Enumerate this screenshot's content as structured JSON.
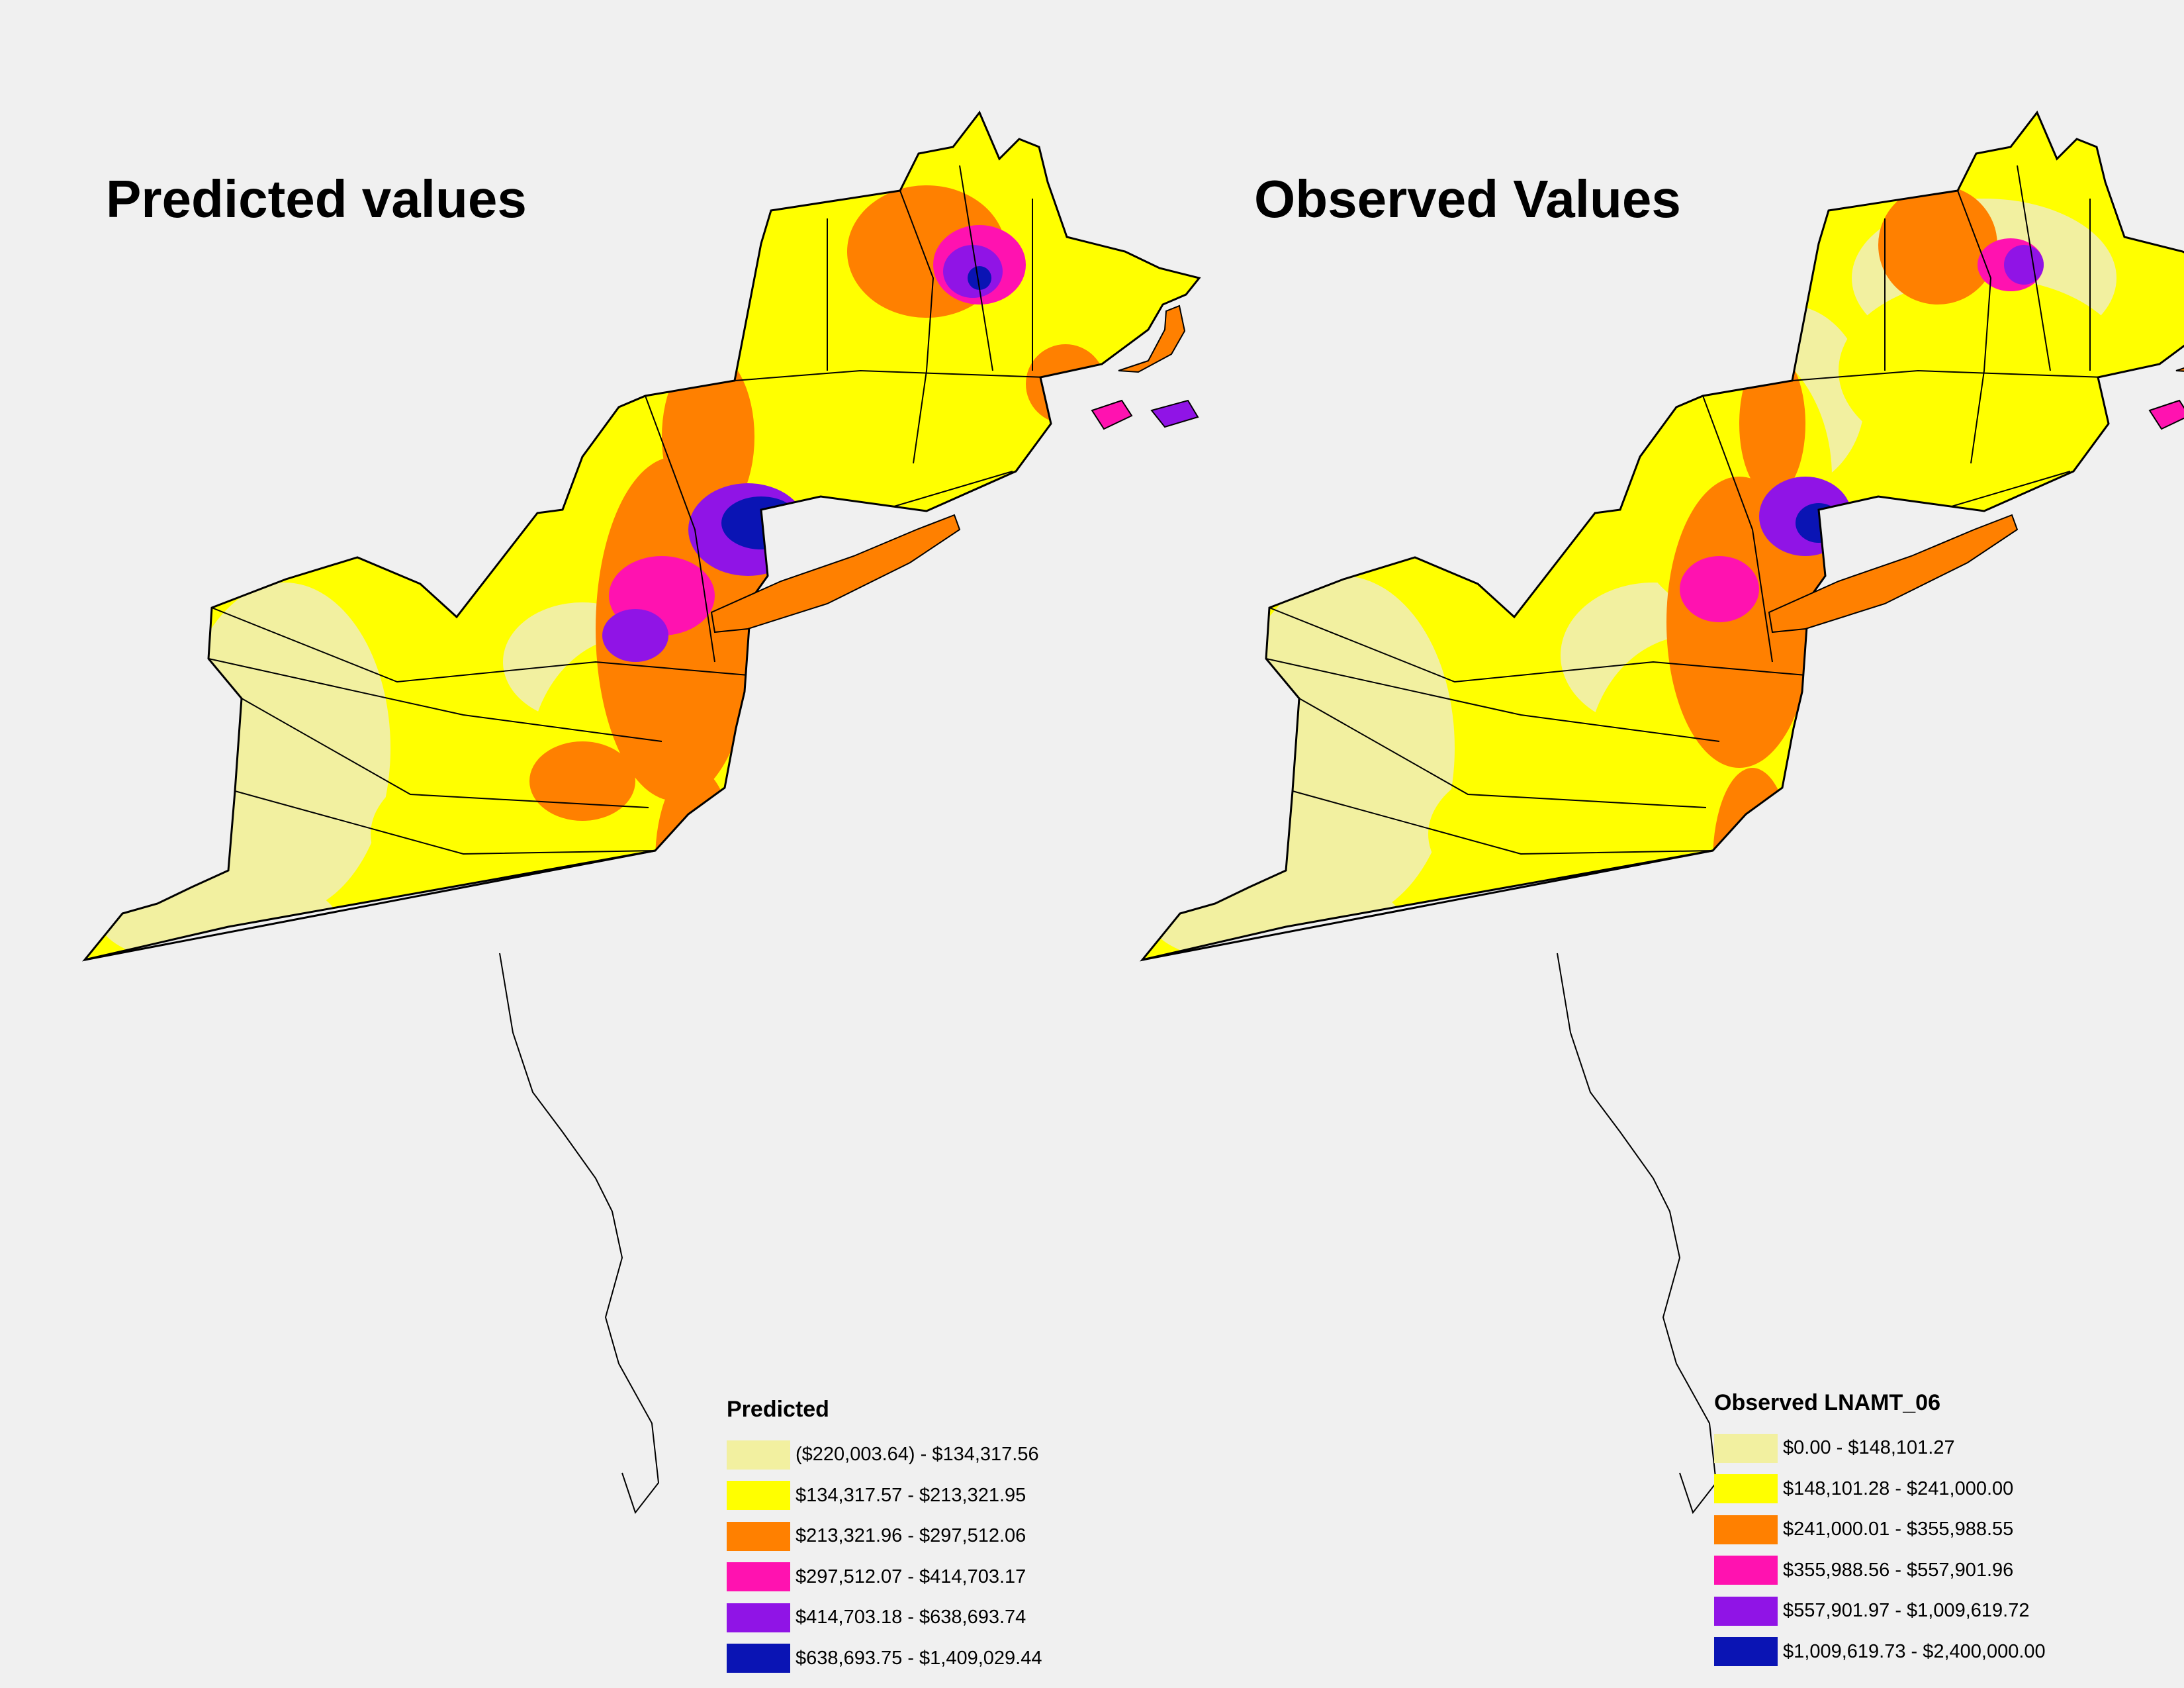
{
  "colors": {
    "class1": "#f2f0a0",
    "class2": "#ffff00",
    "class3": "#ff8000",
    "class4": "#ff12b0",
    "class5": "#9014e6",
    "class6": "#0a14b4",
    "background": "#f0f0f0",
    "border": "#000000"
  },
  "maps": [
    {
      "title": "Predicted values",
      "legend": {
        "title": "Predicted",
        "classes": [
          {
            "label": "($220,003.64) - $134,317.56",
            "color": "#f2f0a0"
          },
          {
            "label": "$134,317.57 - $213,321.95",
            "color": "#ffff00"
          },
          {
            "label": "$213,321.96 - $297,512.06",
            "color": "#ff8000"
          },
          {
            "label": "$297,512.07 - $414,703.17",
            "color": "#ff12b0"
          },
          {
            "label": "$414,703.18 - $638,693.74",
            "color": "#9014e6"
          },
          {
            "label": "$638,693.75 - $1,409,029.44",
            "color": "#0a14b4"
          }
        ]
      }
    },
    {
      "title": "Observed Values",
      "legend": {
        "title": "Observed LNAMT_06",
        "classes": [
          {
            "label": "$0.00 - $148,101.27",
            "color": "#f2f0a0"
          },
          {
            "label": "$148,101.28 - $241,000.00",
            "color": "#ffff00"
          },
          {
            "label": "$241,000.01 - $355,988.55",
            "color": "#ff8000"
          },
          {
            "label": "$355,988.56 - $557,901.96",
            "color": "#ff12b0"
          },
          {
            "label": "$557,901.97 - $1,009,619.72",
            "color": "#9014e6"
          },
          {
            "label": "$1,009,619.73 - $2,400,000.00",
            "color": "#0a14b4"
          }
        ]
      }
    }
  ]
}
